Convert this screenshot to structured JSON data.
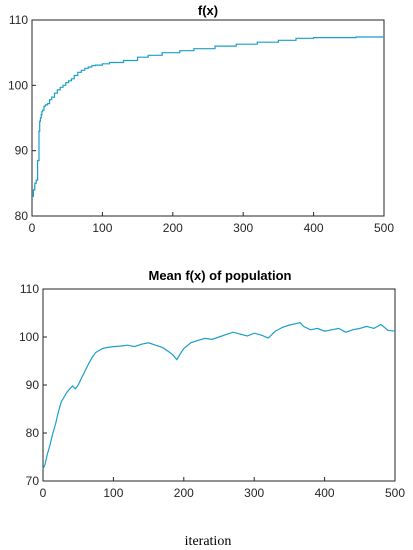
{
  "figure": {
    "xlabel": "iteration"
  },
  "chart_data": [
    {
      "type": "line",
      "title": "f(x)",
      "xlabel": "",
      "ylabel": "",
      "xlim": [
        0,
        500
      ],
      "ylim": [
        80,
        110
      ],
      "xticks": [
        0,
        100,
        200,
        300,
        400,
        500
      ],
      "yticks": [
        80,
        90,
        100,
        110
      ],
      "grid": false,
      "series": [
        {
          "color": "#1a9fc9",
          "step": true,
          "x": [
            0,
            2,
            4,
            6,
            8,
            10,
            11,
            12,
            13,
            14,
            15,
            17,
            19,
            22,
            25,
            28,
            32,
            36,
            40,
            44,
            48,
            52,
            56,
            60,
            65,
            70,
            75,
            80,
            85,
            90,
            100,
            110,
            130,
            150,
            165,
            185,
            210,
            230,
            260,
            290,
            320,
            350,
            375,
            400,
            430,
            460,
            500
          ],
          "y": [
            83.0,
            84.0,
            85.0,
            85.5,
            88.5,
            93.0,
            94.5,
            95.0,
            95.5,
            96.0,
            96.2,
            96.8,
            97.0,
            97.2,
            97.8,
            98.2,
            98.8,
            99.3,
            99.7,
            100.0,
            100.4,
            100.7,
            101.0,
            101.5,
            102.0,
            102.3,
            102.6,
            102.8,
            103.0,
            103.1,
            103.3,
            103.5,
            103.8,
            104.3,
            104.6,
            105.0,
            105.3,
            105.6,
            106.0,
            106.3,
            106.6,
            106.9,
            107.2,
            107.3,
            107.3,
            107.4,
            107.4
          ]
        }
      ]
    },
    {
      "type": "line",
      "title": "Mean f(x) of population",
      "xlabel": "",
      "ylabel": "",
      "xlim": [
        0,
        500
      ],
      "ylim": [
        70,
        110
      ],
      "xticks": [
        0,
        100,
        200,
        300,
        400,
        500
      ],
      "yticks": [
        70,
        80,
        90,
        100,
        110
      ],
      "grid": false,
      "series": [
        {
          "color": "#1a9fc9",
          "step": false,
          "x": [
            0,
            3,
            6,
            10,
            14,
            18,
            22,
            26,
            30,
            34,
            38,
            42,
            46,
            50,
            55,
            60,
            65,
            70,
            75,
            80,
            85,
            90,
            100,
            110,
            120,
            130,
            140,
            150,
            160,
            170,
            180,
            185,
            190,
            195,
            200,
            210,
            220,
            230,
            240,
            250,
            260,
            270,
            280,
            290,
            300,
            310,
            320,
            330,
            340,
            350,
            360,
            365,
            370,
            380,
            390,
            400,
            410,
            420,
            430,
            440,
            450,
            460,
            470,
            480,
            490,
            500
          ],
          "y": [
            72.5,
            73.5,
            75.5,
            77.5,
            80.0,
            82.0,
            84.5,
            86.5,
            87.5,
            88.5,
            89.2,
            89.8,
            89.2,
            90.0,
            91.5,
            93.0,
            94.5,
            95.8,
            96.8,
            97.2,
            97.6,
            97.8,
            98.0,
            98.1,
            98.3,
            98.0,
            98.5,
            98.8,
            98.3,
            97.8,
            96.8,
            96.2,
            95.3,
            96.5,
            97.6,
            98.8,
            99.3,
            99.7,
            99.5,
            100.0,
            100.5,
            101.0,
            100.6,
            100.2,
            100.8,
            100.4,
            99.8,
            101.2,
            102.0,
            102.5,
            102.8,
            103.0,
            102.2,
            101.5,
            101.8,
            101.2,
            101.5,
            101.8,
            101.0,
            101.5,
            101.8,
            102.2,
            101.8,
            102.6,
            101.4,
            101.2
          ]
        }
      ]
    }
  ]
}
